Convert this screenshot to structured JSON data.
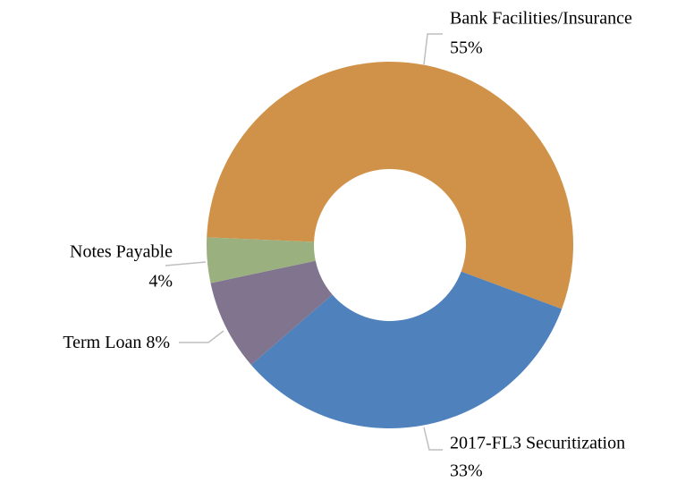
{
  "chart_data": {
    "type": "pie",
    "categories": [
      "Bank Facilities/Insurance",
      "2017-FL3 Securitization",
      "Term Loan",
      "Notes Payable"
    ],
    "values": [
      55,
      33,
      8,
      4
    ],
    "value_labels": [
      "55%",
      "33%",
      "8%",
      "4%"
    ],
    "colors": [
      "#D09249",
      "#4F81BD",
      "#80748F",
      "#9BB07F"
    ],
    "donut": true
  }
}
